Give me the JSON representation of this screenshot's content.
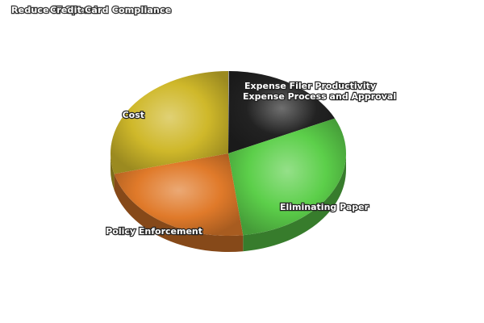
{
  "chart_data": {
    "type": "pie",
    "title": "Reduce IT Spend",
    "title_overlay": "Credit Card Compliance",
    "slices": [
      {
        "label": "Expense Filer Productivity",
        "value": 0.1,
        "color": "#c8c8c8"
      },
      {
        "label": "Expense Process and Approval",
        "value": 17.9,
        "color": "#222222"
      },
      {
        "label": "Eliminating Paper",
        "value": 30,
        "color": "#5ccf4a"
      },
      {
        "label": "Policy Enforcement",
        "value": 23,
        "color": "#e07a2a"
      },
      {
        "label": "Cost",
        "value": 29,
        "color": "#cfb82a"
      }
    ],
    "start_angle_deg": -90,
    "direction": "clockwise",
    "three_d": true
  }
}
